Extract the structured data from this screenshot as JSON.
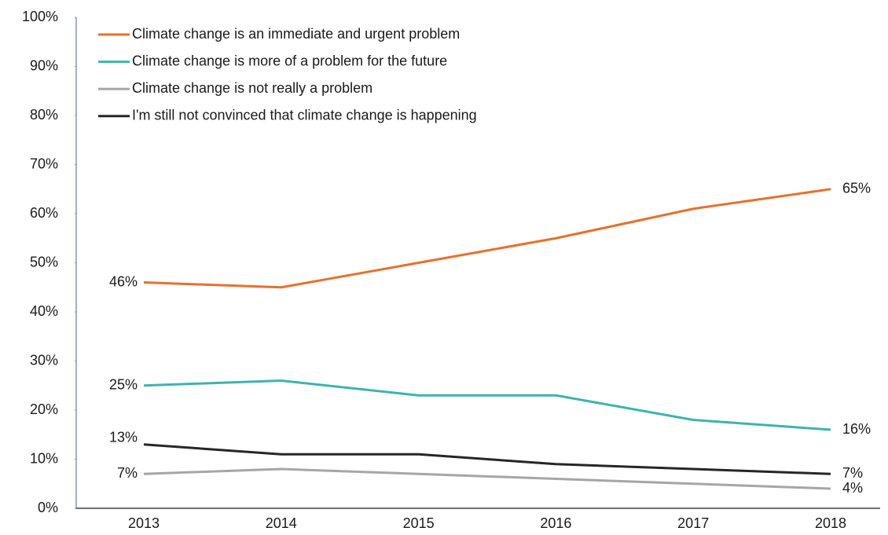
{
  "chart_data": {
    "type": "line",
    "categories": [
      "2013",
      "2014",
      "2015",
      "2016",
      "2017",
      "2018"
    ],
    "series": [
      {
        "name": "Climate change is an immediate and urgent problem",
        "color": "#e8702a",
        "values": [
          46,
          45,
          50,
          55,
          61,
          65
        ],
        "value_labels": [
          "46%",
          null,
          null,
          null,
          null,
          "65%"
        ]
      },
      {
        "name": "Climate change is more of a problem for the future",
        "color": "#3cb4ae",
        "values": [
          25,
          26,
          23,
          23,
          18,
          16
        ],
        "value_labels": [
          "25%",
          null,
          null,
          null,
          null,
          "16%"
        ]
      },
      {
        "name": "Climate change is not really a problem",
        "color": "#a6a6a6",
        "values": [
          7,
          8,
          7,
          6,
          5,
          4
        ],
        "value_labels": [
          "7%",
          null,
          null,
          null,
          null,
          "4%"
        ]
      },
      {
        "name": "I'm still not convinced that climate change is happening",
        "color": "#262626",
        "values": [
          13,
          11,
          11,
          9,
          8,
          7
        ],
        "value_labels": [
          "13%",
          null,
          null,
          null,
          null,
          "7%"
        ]
      }
    ],
    "ylim": [
      0,
      100
    ],
    "yticks": [
      {
        "value": 0,
        "label": "0%"
      },
      {
        "value": 10,
        "label": "10%"
      },
      {
        "value": 20,
        "label": "20%"
      },
      {
        "value": 30,
        "label": "30%"
      },
      {
        "value": 40,
        "label": "40%"
      },
      {
        "value": 50,
        "label": "50%"
      },
      {
        "value": 60,
        "label": "60%"
      },
      {
        "value": 70,
        "label": "70%"
      },
      {
        "value": 80,
        "label": "80%"
      },
      {
        "value": 90,
        "label": "90%"
      },
      {
        "value": 100,
        "label": "100%"
      }
    ],
    "grid": false,
    "legend": "top-left"
  }
}
